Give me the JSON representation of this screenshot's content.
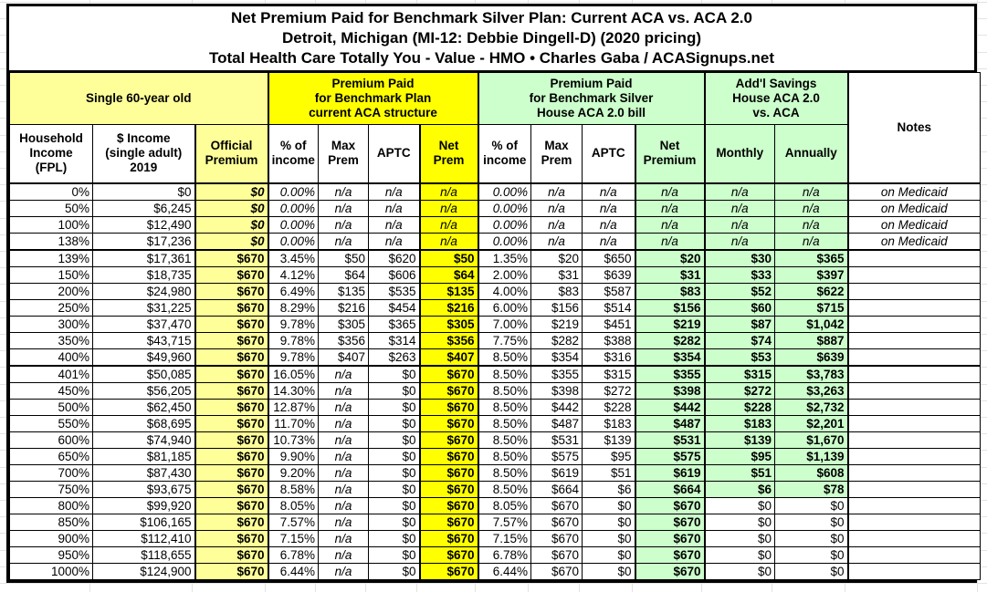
{
  "title": {
    "line1": "Net Premium Paid for Benchmark Silver Plan: Current ACA vs. ACA 2.0",
    "line2": "Detroit, Michigan (MI-12: Debbie Dingell-D) (2020 pricing)",
    "line3": "Total Health Care Totally You - Value - HMO • Charles Gaba / ACASignups.net"
  },
  "group_headers": {
    "single": "Single 60-year old",
    "aca": "Premium Paid\nfor Benchmark Plan\ncurrent ACA structure",
    "aca2": "Premium Paid\nfor Benchmark Silver\nHouse ACA 2.0 bill",
    "savings": "Add'l Savings\nHouse ACA 2.0\nvs. ACA",
    "notes": "Notes"
  },
  "column_headers": [
    "Household\nIncome\n(FPL)",
    "$ Income\n(single adult)\n2019",
    "Official\nPremium",
    "% of\nincome",
    "Max\nPrem",
    "APTC",
    "Net\nPrem",
    "% of\nincome",
    "Max\nPrem",
    "APTC",
    "Net\nPremium",
    "Monthly",
    "Annually"
  ],
  "colors": {
    "pale_yellow": "#FFFF99",
    "bright_yellow": "#FFFF00",
    "light_green": "#CCFFCC",
    "border": "#000000",
    "gridline": "#E3E3E3"
  },
  "rows": [
    {
      "fpl": "0%",
      "income": "$0",
      "official": "$0",
      "aca_pct": "0.00%",
      "aca_max": "n/a",
      "aca_aptc": "n/a",
      "aca_net": "n/a",
      "aca2_pct": "0.00%",
      "aca2_max": "n/a",
      "aca2_aptc": "n/a",
      "aca2_net": "n/a",
      "monthly": "n/a",
      "annually": "n/a",
      "notes": "on Medicaid",
      "medicaid": true
    },
    {
      "fpl": "50%",
      "income": "$6,245",
      "official": "$0",
      "aca_pct": "0.00%",
      "aca_max": "n/a",
      "aca_aptc": "n/a",
      "aca_net": "n/a",
      "aca2_pct": "0.00%",
      "aca2_max": "n/a",
      "aca2_aptc": "n/a",
      "aca2_net": "n/a",
      "monthly": "n/a",
      "annually": "n/a",
      "notes": "on Medicaid",
      "medicaid": true
    },
    {
      "fpl": "100%",
      "income": "$12,490",
      "official": "$0",
      "aca_pct": "0.00%",
      "aca_max": "n/a",
      "aca_aptc": "n/a",
      "aca_net": "n/a",
      "aca2_pct": "0.00%",
      "aca2_max": "n/a",
      "aca2_aptc": "n/a",
      "aca2_net": "n/a",
      "monthly": "n/a",
      "annually": "n/a",
      "notes": "on Medicaid",
      "medicaid": true
    },
    {
      "fpl": "138%",
      "income": "$17,236",
      "official": "$0",
      "aca_pct": "0.00%",
      "aca_max": "n/a",
      "aca_aptc": "n/a",
      "aca_net": "n/a",
      "aca2_pct": "0.00%",
      "aca2_max": "n/a",
      "aca2_aptc": "n/a",
      "aca2_net": "n/a",
      "monthly": "n/a",
      "annually": "n/a",
      "notes": "on Medicaid",
      "medicaid": true,
      "group_end": true
    },
    {
      "fpl": "139%",
      "income": "$17,361",
      "official": "$670",
      "aca_pct": "3.45%",
      "aca_max": "$50",
      "aca_aptc": "$620",
      "aca_net": "$50",
      "aca2_pct": "1.35%",
      "aca2_max": "$20",
      "aca2_aptc": "$650",
      "aca2_net": "$20",
      "monthly": "$30",
      "annually": "$365",
      "notes": ""
    },
    {
      "fpl": "150%",
      "income": "$18,735",
      "official": "$670",
      "aca_pct": "4.12%",
      "aca_max": "$64",
      "aca_aptc": "$606",
      "aca_net": "$64",
      "aca2_pct": "2.00%",
      "aca2_max": "$31",
      "aca2_aptc": "$639",
      "aca2_net": "$31",
      "monthly": "$33",
      "annually": "$397",
      "notes": ""
    },
    {
      "fpl": "200%",
      "income": "$24,980",
      "official": "$670",
      "aca_pct": "6.49%",
      "aca_max": "$135",
      "aca_aptc": "$535",
      "aca_net": "$135",
      "aca2_pct": "4.00%",
      "aca2_max": "$83",
      "aca2_aptc": "$587",
      "aca2_net": "$83",
      "monthly": "$52",
      "annually": "$622",
      "notes": ""
    },
    {
      "fpl": "250%",
      "income": "$31,225",
      "official": "$670",
      "aca_pct": "8.29%",
      "aca_max": "$216",
      "aca_aptc": "$454",
      "aca_net": "$216",
      "aca2_pct": "6.00%",
      "aca2_max": "$156",
      "aca2_aptc": "$514",
      "aca2_net": "$156",
      "monthly": "$60",
      "annually": "$715",
      "notes": ""
    },
    {
      "fpl": "300%",
      "income": "$37,470",
      "official": "$670",
      "aca_pct": "9.78%",
      "aca_max": "$305",
      "aca_aptc": "$365",
      "aca_net": "$305",
      "aca2_pct": "7.00%",
      "aca2_max": "$219",
      "aca2_aptc": "$451",
      "aca2_net": "$219",
      "monthly": "$87",
      "annually": "$1,042",
      "notes": ""
    },
    {
      "fpl": "350%",
      "income": "$43,715",
      "official": "$670",
      "aca_pct": "9.78%",
      "aca_max": "$356",
      "aca_aptc": "$314",
      "aca_net": "$356",
      "aca2_pct": "7.75%",
      "aca2_max": "$282",
      "aca2_aptc": "$388",
      "aca2_net": "$282",
      "monthly": "$74",
      "annually": "$887",
      "notes": ""
    },
    {
      "fpl": "400%",
      "income": "$49,960",
      "official": "$670",
      "aca_pct": "9.78%",
      "aca_max": "$407",
      "aca_aptc": "$263",
      "aca_net": "$407",
      "aca2_pct": "8.50%",
      "aca2_max": "$354",
      "aca2_aptc": "$316",
      "aca2_net": "$354",
      "monthly": "$53",
      "annually": "$639",
      "notes": "",
      "group_end": true
    },
    {
      "fpl": "401%",
      "income": "$50,085",
      "official": "$670",
      "aca_pct": "16.05%",
      "aca_max": "n/a",
      "aca_aptc": "$0",
      "aca_net": "$670",
      "aca2_pct": "8.50%",
      "aca2_max": "$355",
      "aca2_aptc": "$315",
      "aca2_net": "$355",
      "monthly": "$315",
      "annually": "$3,783",
      "notes": ""
    },
    {
      "fpl": "450%",
      "income": "$56,205",
      "official": "$670",
      "aca_pct": "14.30%",
      "aca_max": "n/a",
      "aca_aptc": "$0",
      "aca_net": "$670",
      "aca2_pct": "8.50%",
      "aca2_max": "$398",
      "aca2_aptc": "$272",
      "aca2_net": "$398",
      "monthly": "$272",
      "annually": "$3,263",
      "notes": ""
    },
    {
      "fpl": "500%",
      "income": "$62,450",
      "official": "$670",
      "aca_pct": "12.87%",
      "aca_max": "n/a",
      "aca_aptc": "$0",
      "aca_net": "$670",
      "aca2_pct": "8.50%",
      "aca2_max": "$442",
      "aca2_aptc": "$228",
      "aca2_net": "$442",
      "monthly": "$228",
      "annually": "$2,732",
      "notes": ""
    },
    {
      "fpl": "550%",
      "income": "$68,695",
      "official": "$670",
      "aca_pct": "11.70%",
      "aca_max": "n/a",
      "aca_aptc": "$0",
      "aca_net": "$670",
      "aca2_pct": "8.50%",
      "aca2_max": "$487",
      "aca2_aptc": "$183",
      "aca2_net": "$487",
      "monthly": "$183",
      "annually": "$2,201",
      "notes": ""
    },
    {
      "fpl": "600%",
      "income": "$74,940",
      "official": "$670",
      "aca_pct": "10.73%",
      "aca_max": "n/a",
      "aca_aptc": "$0",
      "aca_net": "$670",
      "aca2_pct": "8.50%",
      "aca2_max": "$531",
      "aca2_aptc": "$139",
      "aca2_net": "$531",
      "monthly": "$139",
      "annually": "$1,670",
      "notes": ""
    },
    {
      "fpl": "650%",
      "income": "$81,185",
      "official": "$670",
      "aca_pct": "9.90%",
      "aca_max": "n/a",
      "aca_aptc": "$0",
      "aca_net": "$670",
      "aca2_pct": "8.50%",
      "aca2_max": "$575",
      "aca2_aptc": "$95",
      "aca2_net": "$575",
      "monthly": "$95",
      "annually": "$1,139",
      "notes": ""
    },
    {
      "fpl": "700%",
      "income": "$87,430",
      "official": "$670",
      "aca_pct": "9.20%",
      "aca_max": "n/a",
      "aca_aptc": "$0",
      "aca_net": "$670",
      "aca2_pct": "8.50%",
      "aca2_max": "$619",
      "aca2_aptc": "$51",
      "aca2_net": "$619",
      "monthly": "$51",
      "annually": "$608",
      "notes": ""
    },
    {
      "fpl": "750%",
      "income": "$93,675",
      "official": "$670",
      "aca_pct": "8.58%",
      "aca_max": "n/a",
      "aca_aptc": "$0",
      "aca_net": "$670",
      "aca2_pct": "8.50%",
      "aca2_max": "$664",
      "aca2_aptc": "$6",
      "aca2_net": "$664",
      "monthly": "$6",
      "annually": "$78",
      "notes": ""
    },
    {
      "fpl": "800%",
      "income": "$99,920",
      "official": "$670",
      "aca_pct": "8.05%",
      "aca_max": "n/a",
      "aca_aptc": "$0",
      "aca_net": "$670",
      "aca2_pct": "8.05%",
      "aca2_max": "$670",
      "aca2_aptc": "$0",
      "aca2_net": "$670",
      "monthly": "$0",
      "annually": "$0",
      "notes": "",
      "no_savings": true
    },
    {
      "fpl": "850%",
      "income": "$106,165",
      "official": "$670",
      "aca_pct": "7.57%",
      "aca_max": "n/a",
      "aca_aptc": "$0",
      "aca_net": "$670",
      "aca2_pct": "7.57%",
      "aca2_max": "$670",
      "aca2_aptc": "$0",
      "aca2_net": "$670",
      "monthly": "$0",
      "annually": "$0",
      "notes": "",
      "no_savings": true
    },
    {
      "fpl": "900%",
      "income": "$112,410",
      "official": "$670",
      "aca_pct": "7.15%",
      "aca_max": "n/a",
      "aca_aptc": "$0",
      "aca_net": "$670",
      "aca2_pct": "7.15%",
      "aca2_max": "$670",
      "aca2_aptc": "$0",
      "aca2_net": "$670",
      "monthly": "$0",
      "annually": "$0",
      "notes": "",
      "no_savings": true
    },
    {
      "fpl": "950%",
      "income": "$118,655",
      "official": "$670",
      "aca_pct": "6.78%",
      "aca_max": "n/a",
      "aca_aptc": "$0",
      "aca_net": "$670",
      "aca2_pct": "6.78%",
      "aca2_max": "$670",
      "aca2_aptc": "$0",
      "aca2_net": "$670",
      "monthly": "$0",
      "annually": "$0",
      "notes": "",
      "no_savings": true
    },
    {
      "fpl": "1000%",
      "income": "$124,900",
      "official": "$670",
      "aca_pct": "6.44%",
      "aca_max": "n/a",
      "aca_aptc": "$0",
      "aca_net": "$670",
      "aca2_pct": "6.44%",
      "aca2_max": "$670",
      "aca2_aptc": "$0",
      "aca2_net": "$670",
      "monthly": "$0",
      "annually": "$0",
      "notes": "",
      "no_savings": true
    }
  ]
}
